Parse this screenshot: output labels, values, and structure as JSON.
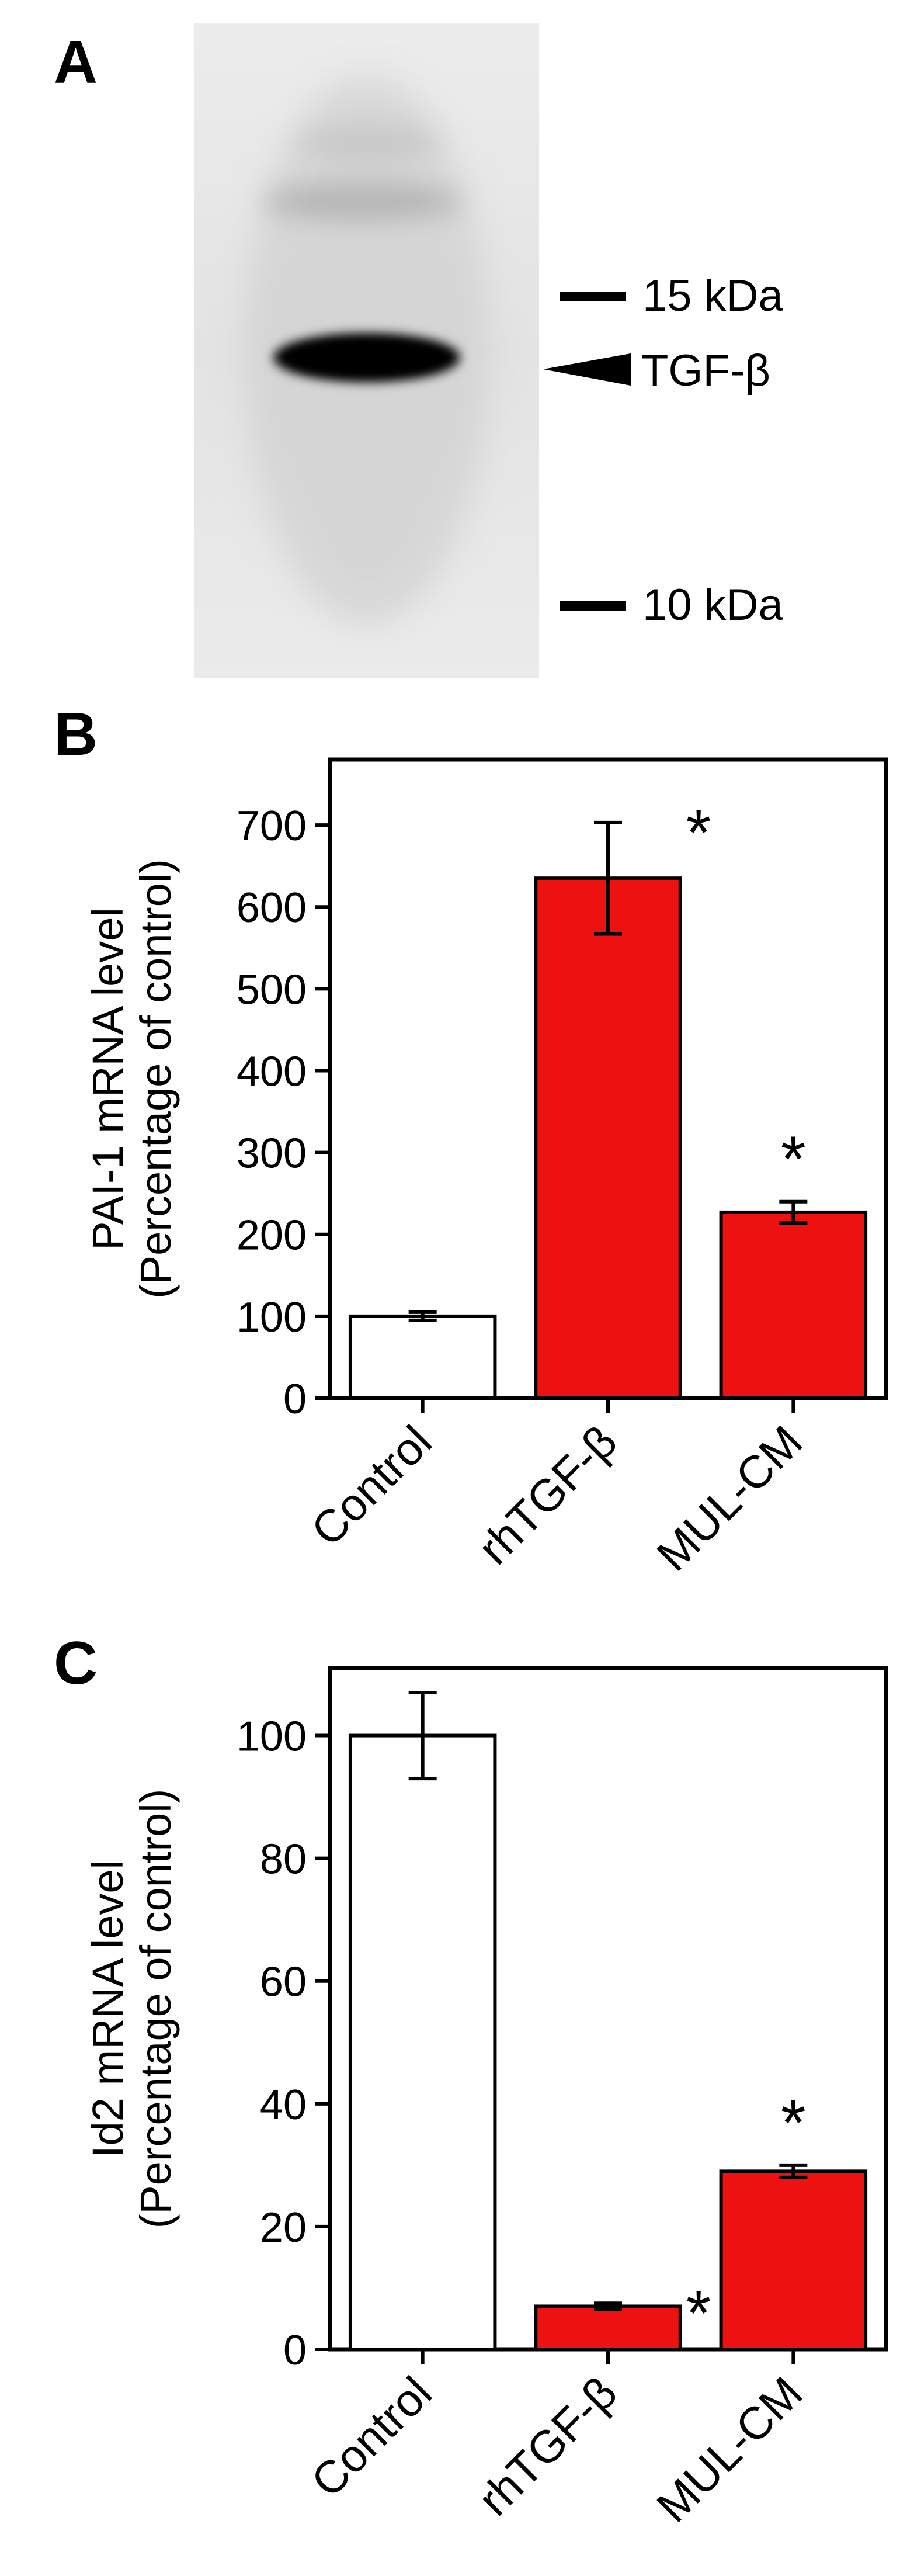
{
  "panels": {
    "a": {
      "letter": "A",
      "markers": [
        {
          "label": "15 kDa"
        },
        {
          "label": "TGF-β"
        },
        {
          "label": "10 kDa"
        }
      ]
    },
    "b": {
      "letter": "B"
    },
    "c": {
      "letter": "C"
    }
  },
  "colors": {
    "control_bar": "#ffffff",
    "treated_bar": "#ee1111",
    "axis": "#000000"
  },
  "chart_data": [
    {
      "type": "bar",
      "panel": "B",
      "ylabel": "PAI-1 mRNA level",
      "ylabel2": "(Percentage of control)",
      "categories": [
        "Control",
        "rhTGF-β",
        "MUL-CM"
      ],
      "values": [
        100,
        635,
        227
      ],
      "errors": [
        5,
        68,
        13
      ],
      "significant": [
        false,
        true,
        true
      ],
      "significance_marker": "*",
      "ylim": [
        0,
        780
      ],
      "yticks": [
        0,
        100,
        200,
        300,
        400,
        500,
        600,
        700
      ],
      "grid": false
    },
    {
      "type": "bar",
      "panel": "C",
      "ylabel": "Id2 mRNA level",
      "ylabel2": "(Percentage of control)",
      "categories": [
        "Control",
        "rhTGF-β",
        "MUL-CM"
      ],
      "values": [
        100,
        7,
        29
      ],
      "errors": [
        7,
        0.5,
        1
      ],
      "significant": [
        false,
        true,
        true
      ],
      "significance_marker": "*",
      "ylim": [
        0,
        111
      ],
      "yticks": [
        0,
        20,
        40,
        60,
        80,
        100
      ],
      "grid": false
    }
  ]
}
